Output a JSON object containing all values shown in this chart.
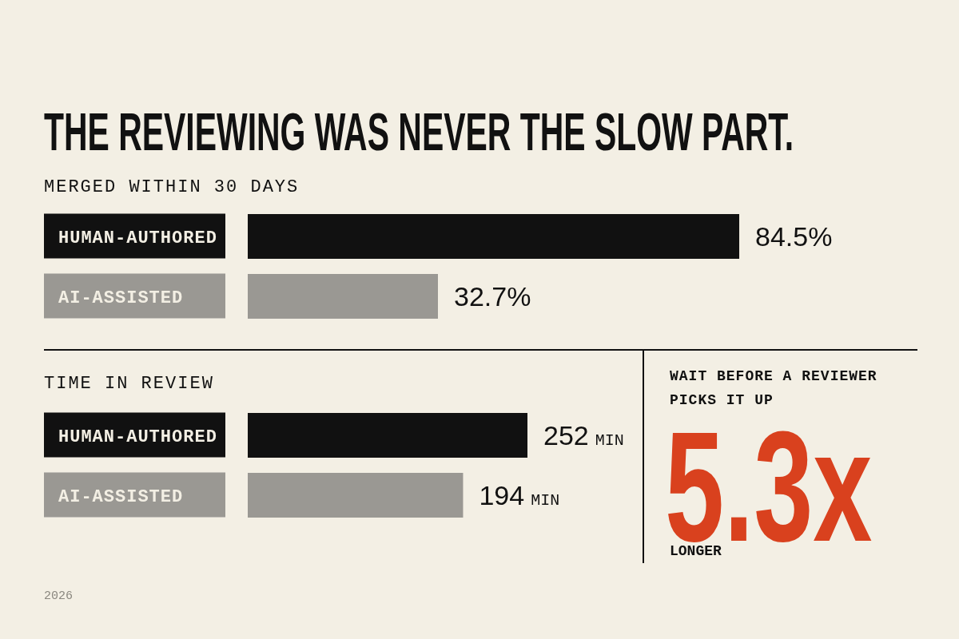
{
  "chart_data": [
    {
      "type": "bar",
      "orientation": "horizontal",
      "title": "THE REVIEWING WAS NEVER THE SLOW PART.",
      "subtitle": "MERGED WITHIN 30 DAYS",
      "categories": [
        "HUMAN-AUTHORED",
        "AI-ASSISTED"
      ],
      "values": [
        84.5,
        32.7
      ],
      "colors": [
        "#111111",
        "#9a9893"
      ],
      "value_labels": [
        "84.5%",
        "32.7%"
      ]
    },
    {
      "type": "bar",
      "orientation": "horizontal",
      "title": "TIME IN REVIEW",
      "categories": [
        "HUMAN-AUTHORED",
        "AI-ASSISTED"
      ],
      "values": [
        252,
        194
      ],
      "colors": [
        "#111111",
        "#9a9893"
      ],
      "value_labels": [
        "252 MIN",
        "194 MIN"
      ],
      "annotations": [
        "2026"
      ]
    },
    {
      "type": "other",
      "title": "WAIT BEFORE A REVIEWER PICKS IT UP",
      "annotations": [
        "5.3x",
        "LONGER"
      ]
    }
  ]
}
